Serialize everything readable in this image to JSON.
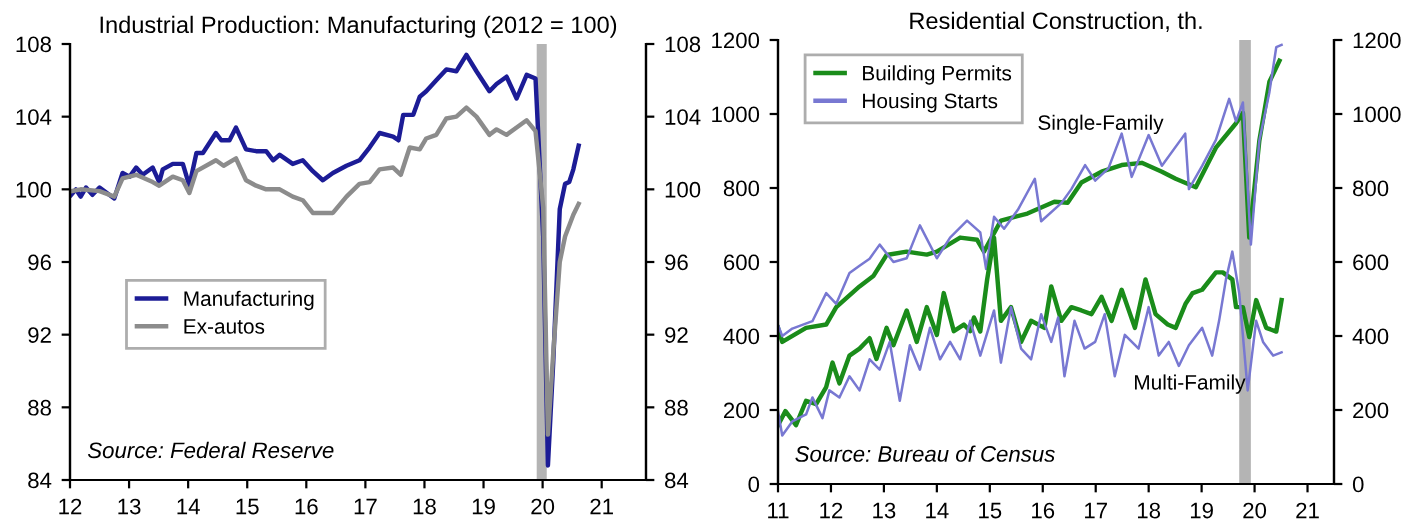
{
  "chart_data": [
    {
      "type": "line",
      "title": "Industrial Production: Manufacturing (2012 = 100)",
      "xlim": [
        12,
        21.75
      ],
      "xticks": [
        12,
        13,
        14,
        15,
        16,
        17,
        18,
        19,
        20,
        21
      ],
      "ylim": [
        84,
        108
      ],
      "yticks": [
        84,
        88,
        92,
        96,
        100,
        104,
        108
      ],
      "y2lim": [
        84,
        108
      ],
      "y2ticks": [
        84,
        88,
        92,
        96,
        100,
        104,
        108
      ],
      "legend": "center left",
      "line_style": "solid",
      "bands": [
        {
          "axis": "x",
          "from": 19.9,
          "to": 20.07,
          "color": "#b4b4b4"
        }
      ],
      "annotations": [
        "Source: Federal Reserve"
      ],
      "series": [
        {
          "name": "Manufacturing",
          "color": "#1c1c96",
          "x": [
            12.02,
            12.1,
            12.18,
            12.27,
            12.38,
            12.5,
            12.75,
            12.89,
            13.01,
            13.12,
            13.23,
            13.4,
            13.51,
            13.57,
            13.74,
            13.91,
            14.02,
            14.14,
            14.25,
            14.47,
            14.56,
            14.7,
            14.81,
            14.98,
            15.15,
            15.32,
            15.44,
            15.55,
            15.77,
            15.94,
            16.11,
            16.28,
            16.45,
            16.68,
            16.9,
            17.07,
            17.24,
            17.47,
            17.56,
            17.64,
            17.81,
            17.92,
            18.03,
            18.2,
            18.37,
            18.54,
            18.71,
            18.88,
            19.1,
            19.22,
            19.39,
            19.56,
            19.73,
            19.88,
            20.01,
            20.09,
            20.18,
            20.29,
            20.38,
            20.45,
            20.52,
            20.61
          ],
          "values": [
            99.7,
            100.0,
            99.6,
            100.1,
            99.7,
            100.1,
            99.5,
            100.9,
            100.7,
            101.2,
            100.8,
            101.2,
            100.4,
            101.1,
            101.4,
            101.4,
            100.2,
            102.0,
            102.0,
            103.1,
            102.7,
            102.7,
            103.4,
            102.2,
            102.1,
            102.1,
            101.6,
            101.9,
            101.4,
            101.6,
            101.0,
            100.5,
            100.9,
            101.3,
            101.6,
            102.3,
            103.1,
            102.9,
            102.7,
            104.1,
            104.1,
            105.1,
            105.4,
            106.0,
            106.6,
            106.5,
            107.4,
            106.5,
            105.4,
            105.8,
            106.2,
            105.0,
            106.3,
            106.1,
            97.4,
            84.8,
            90.5,
            98.9,
            100.3,
            100.4,
            101.1,
            102.4
          ]
        },
        {
          "name": "Ex-autos",
          "color": "#8c8c8c",
          "x": [
            12.02,
            12.18,
            12.5,
            12.75,
            12.89,
            13.12,
            13.4,
            13.51,
            13.74,
            13.91,
            14.02,
            14.14,
            14.47,
            14.6,
            14.81,
            14.98,
            15.15,
            15.32,
            15.55,
            15.77,
            15.94,
            16.11,
            16.28,
            16.45,
            16.68,
            16.9,
            17.07,
            17.24,
            17.47,
            17.6,
            17.75,
            17.92,
            18.03,
            18.2,
            18.37,
            18.54,
            18.71,
            18.88,
            19.1,
            19.22,
            19.39,
            19.56,
            19.73,
            19.88,
            20.01,
            20.09,
            20.18,
            20.29,
            20.38,
            20.52,
            20.61
          ],
          "values": [
            99.9,
            100.0,
            99.9,
            99.6,
            100.6,
            100.8,
            100.4,
            100.2,
            100.7,
            100.5,
            99.8,
            101.0,
            101.6,
            101.3,
            101.7,
            100.5,
            100.2,
            100.0,
            100.0,
            99.6,
            99.4,
            98.7,
            98.7,
            98.7,
            99.6,
            100.3,
            100.4,
            101.1,
            101.2,
            100.8,
            102.3,
            102.2,
            102.8,
            103.0,
            103.9,
            104.0,
            104.5,
            104.0,
            103.0,
            103.3,
            103.0,
            103.4,
            103.8,
            103.2,
            99.0,
            86.5,
            91.0,
            96.0,
            97.4,
            98.6,
            99.2
          ]
        }
      ]
    },
    {
      "type": "line",
      "title": "Residential Construction, th.",
      "xlim": [
        11,
        21.5
      ],
      "xticks": [
        11,
        12,
        13,
        14,
        15,
        16,
        17,
        18,
        19,
        20,
        21
      ],
      "ylim": [
        0,
        1200
      ],
      "yticks": [
        0,
        200,
        400,
        600,
        800,
        1000,
        1200
      ],
      "y2lim": [
        0,
        1200
      ],
      "y2ticks": [
        0,
        200,
        400,
        600,
        800,
        1000,
        1200
      ],
      "legend": "top left",
      "line_style": "solid",
      "bands": [
        {
          "axis": "x",
          "from": 19.71,
          "to": 19.93,
          "color": "#b4b4b4"
        }
      ],
      "annotations": [
        "Single-Family",
        "Multi-Family",
        "Source: Bureau of Census"
      ],
      "series": [
        {
          "name": "Building Permits",
          "color": "#1a8c1a",
          "x": [
            11.0,
            11.08,
            11.53,
            11.91,
            12.1,
            12.54,
            12.8,
            13.05,
            13.43,
            13.81,
            14.0,
            14.44,
            14.76,
            14.89,
            15.21,
            15.71,
            16.22,
            16.47,
            16.73,
            17.11,
            17.49,
            17.87,
            18.25,
            18.51,
            18.89,
            19.27,
            19.65,
            19.78,
            19.9,
            20.09,
            20.28,
            20.47
          ],
          "values": [
            422,
            384,
            422,
            431,
            478,
            534,
            562,
            619,
            628,
            620,
            628,
            666,
            660,
            628,
            712,
            731,
            763,
            760,
            815,
            844,
            862,
            868,
            844,
            825,
            802,
            909,
            975,
            1003,
            666,
            928,
            1087,
            1144
          ]
        },
        {
          "name": "Housing Starts",
          "color": "#7878d2",
          "x": [
            11.0,
            11.08,
            11.27,
            11.65,
            11.91,
            12.1,
            12.35,
            12.54,
            12.73,
            12.92,
            13.18,
            13.43,
            13.68,
            14.0,
            14.25,
            14.57,
            14.82,
            14.93,
            15.08,
            15.27,
            15.53,
            15.85,
            15.97,
            16.35,
            16.54,
            16.8,
            16.99,
            17.24,
            17.49,
            17.68,
            18.0,
            18.25,
            18.69,
            18.76,
            19.01,
            19.27,
            19.52,
            19.65,
            19.78,
            19.93,
            20.09,
            20.28,
            20.41,
            20.51
          ],
          "values": [
            430,
            400,
            420,
            440,
            516,
            487,
            570,
            590,
            609,
            647,
            600,
            610,
            699,
            610,
            666,
            712,
            680,
            581,
            722,
            690,
            741,
            825,
            710,
            759,
            797,
            862,
            820,
            853,
            947,
            830,
            943,
            860,
            947,
            797,
            860,
            930,
            1041,
            980,
            1031,
            647,
            928,
            1059,
            1181,
            1187
          ]
        },
        {
          "color": "#1a8c1a",
          "x": [
            11.0,
            11.14,
            11.34,
            11.53,
            11.72,
            11.91,
            12.03,
            12.16,
            12.35,
            12.54,
            12.73,
            12.86,
            13.05,
            13.18,
            13.43,
            13.62,
            13.81,
            14.0,
            14.13,
            14.32,
            14.51,
            14.63,
            14.7,
            14.82,
            14.95,
            15.08,
            15.21,
            15.4,
            15.59,
            15.78,
            16.03,
            16.16,
            16.35,
            16.54,
            16.73,
            16.92,
            17.11,
            17.3,
            17.49,
            17.74,
            17.94,
            18.13,
            18.36,
            18.51,
            18.7,
            18.83,
            19.01,
            19.27,
            19.4,
            19.58,
            19.65,
            19.78,
            19.9,
            20.03,
            20.22,
            20.41,
            20.51
          ],
          "values": [
            159,
            197,
            159,
            225,
            216,
            262,
            328,
            272,
            347,
            366,
            394,
            338,
            422,
            375,
            469,
            384,
            478,
            403,
            516,
            413,
            431,
            413,
            450,
            412,
            553,
            666,
            441,
            478,
            384,
            441,
            422,
            534,
            441,
            478,
            469,
            459,
            506,
            441,
            525,
            422,
            553,
            459,
            431,
            422,
            488,
            516,
            525,
            572,
            572,
            553,
            478,
            478,
            397,
            497,
            422,
            412,
            497
          ]
        },
        {
          "color": "#7878d2",
          "x": [
            11.0,
            11.08,
            11.27,
            11.53,
            11.65,
            11.84,
            11.97,
            12.16,
            12.35,
            12.54,
            12.73,
            12.92,
            13.11,
            13.3,
            13.49,
            13.68,
            13.87,
            14.06,
            14.25,
            14.44,
            14.63,
            14.82,
            15.08,
            15.21,
            15.4,
            15.59,
            15.78,
            15.97,
            16.16,
            16.29,
            16.41,
            16.6,
            16.79,
            16.99,
            17.17,
            17.36,
            17.55,
            17.81,
            18.0,
            18.19,
            18.38,
            18.57,
            18.76,
            19.01,
            19.2,
            19.33,
            19.46,
            19.58,
            19.71,
            19.87,
            20.03,
            20.16,
            20.35,
            20.51
          ],
          "values": [
            197,
            131,
            169,
            188,
            234,
            178,
            253,
            234,
            291,
            253,
            337,
            309,
            384,
            225,
            375,
            309,
            422,
            337,
            384,
            337,
            441,
            347,
            469,
            328,
            478,
            366,
            337,
            459,
            384,
            450,
            291,
            441,
            366,
            384,
            459,
            291,
            403,
            366,
            478,
            347,
            384,
            319,
            375,
            422,
            347,
            441,
            553,
            628,
            516,
            253,
            441,
            384,
            347,
            356
          ]
        }
      ]
    }
  ]
}
